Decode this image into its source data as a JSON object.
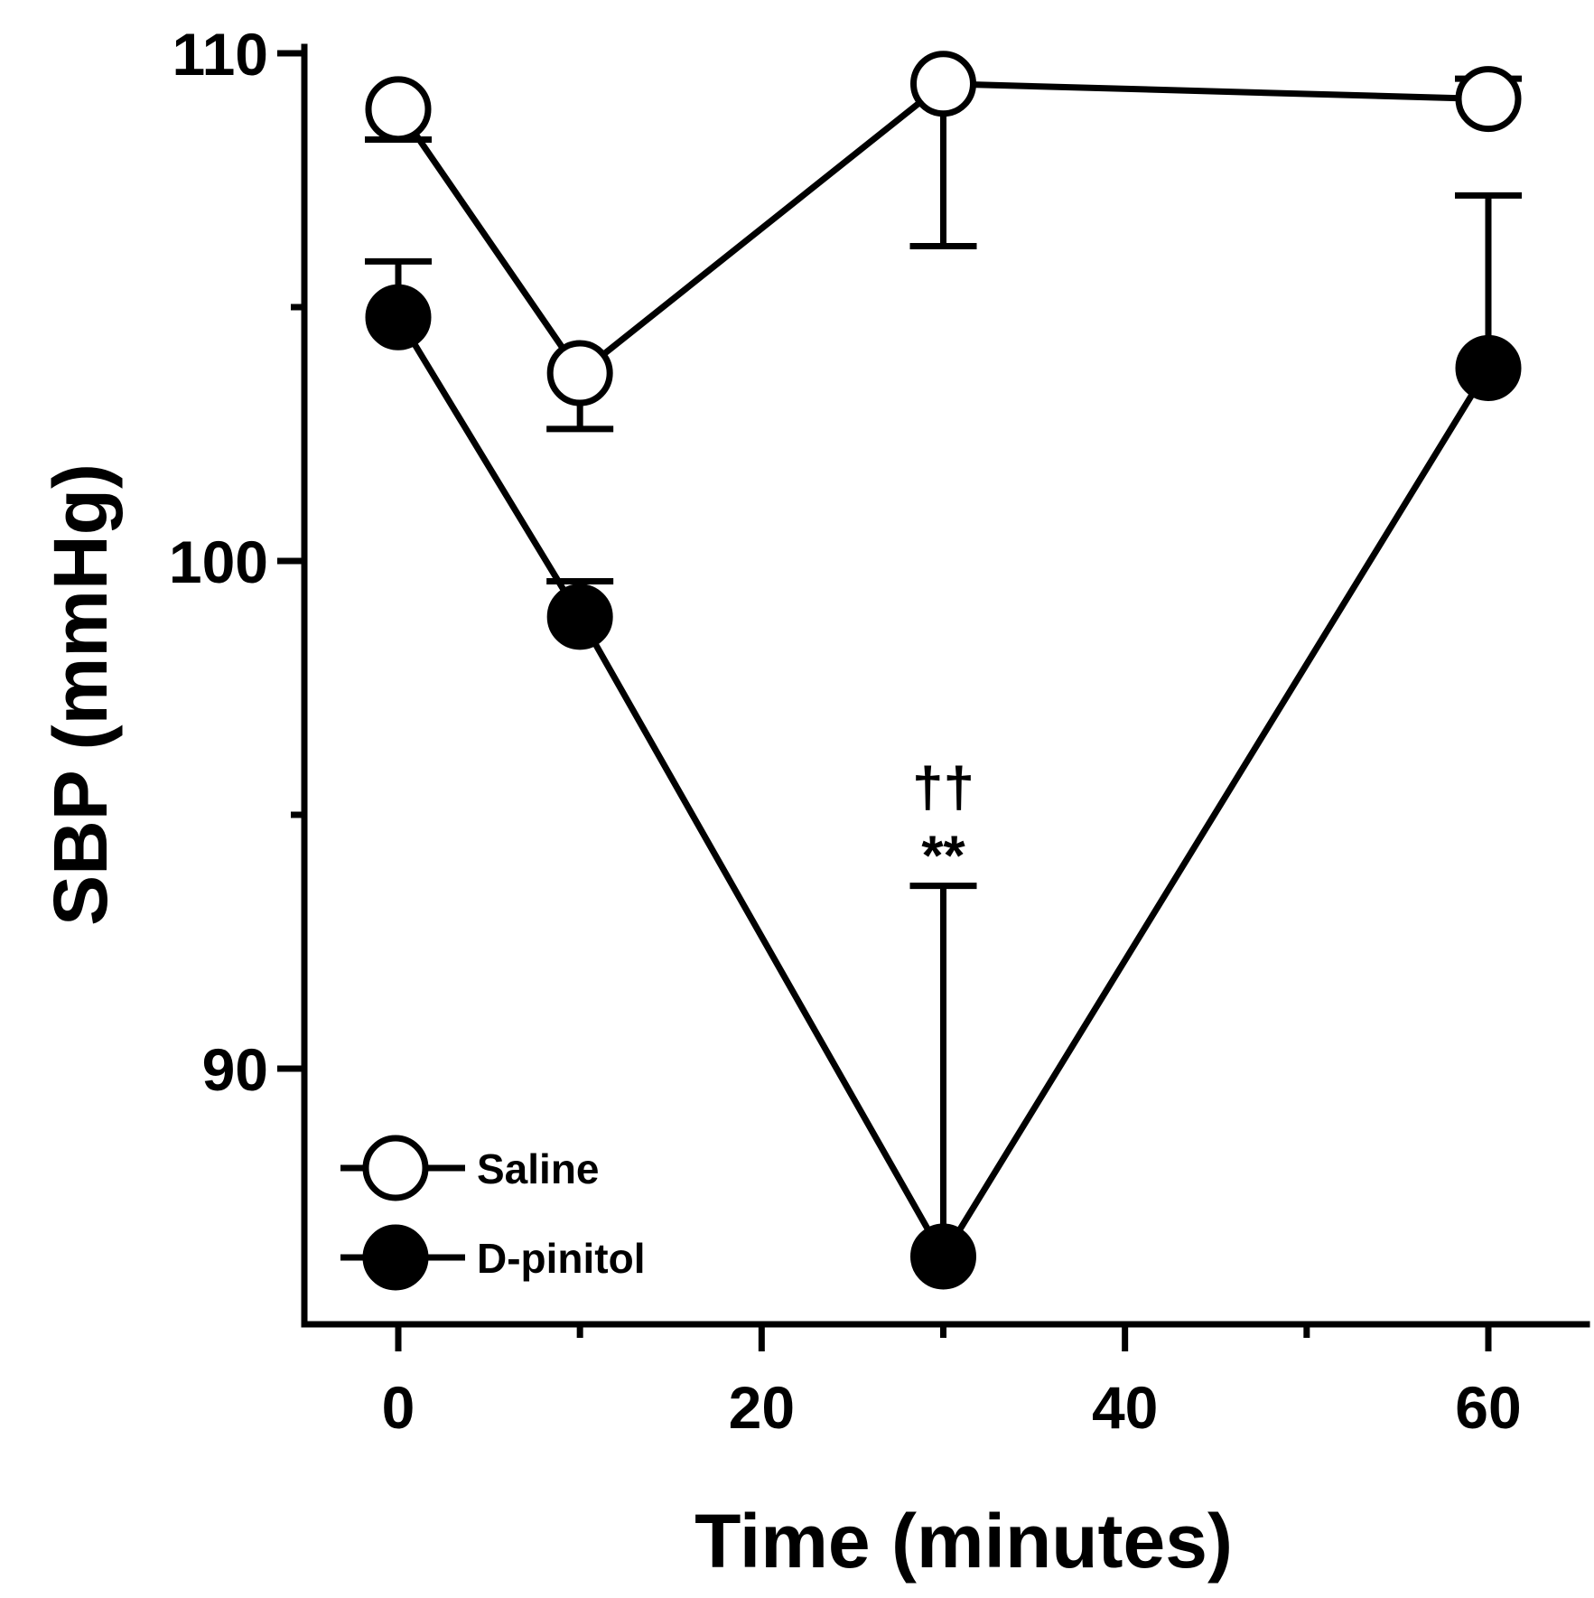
{
  "chart_data": {
    "type": "line",
    "xlabel": "Time (minutes)",
    "ylabel": "SBP (mmHg)",
    "xlim": [
      -5,
      65
    ],
    "ylim": [
      85,
      110
    ],
    "xticks": [
      0,
      20,
      40,
      60
    ],
    "xminor": [
      10,
      30,
      50
    ],
    "yticks": [
      90,
      100,
      110
    ],
    "yminor": [
      95,
      105
    ],
    "grid": false,
    "legend": "bottom-left",
    "series": [
      {
        "name": "Saline",
        "marker": "open-circle",
        "x": [
          0,
          10,
          30,
          60
        ],
        "y": [
          108.9,
          103.7,
          109.4,
          109.1
        ],
        "error_bar": [
          {
            "x": 0,
            "end": 108.3
          },
          {
            "x": 10,
            "end": 102.6
          },
          {
            "x": 30,
            "end": 106.2
          },
          {
            "x": 60,
            "end": 109.5
          }
        ]
      },
      {
        "name": "D-pinitol",
        "marker": "filled-circle",
        "x": [
          0,
          10,
          30,
          60
        ],
        "y": [
          104.8,
          98.9,
          86.3,
          103.8
        ],
        "error_bar": [
          {
            "x": 0,
            "end": 105.9
          },
          {
            "x": 10,
            "end": 99.6
          },
          {
            "x": 30,
            "end": 93.6
          },
          {
            "x": 60,
            "end": 107.2
          }
        ]
      }
    ],
    "annotations": [
      {
        "text": "††",
        "x": 30
      },
      {
        "text": "**",
        "x": 30
      }
    ]
  }
}
